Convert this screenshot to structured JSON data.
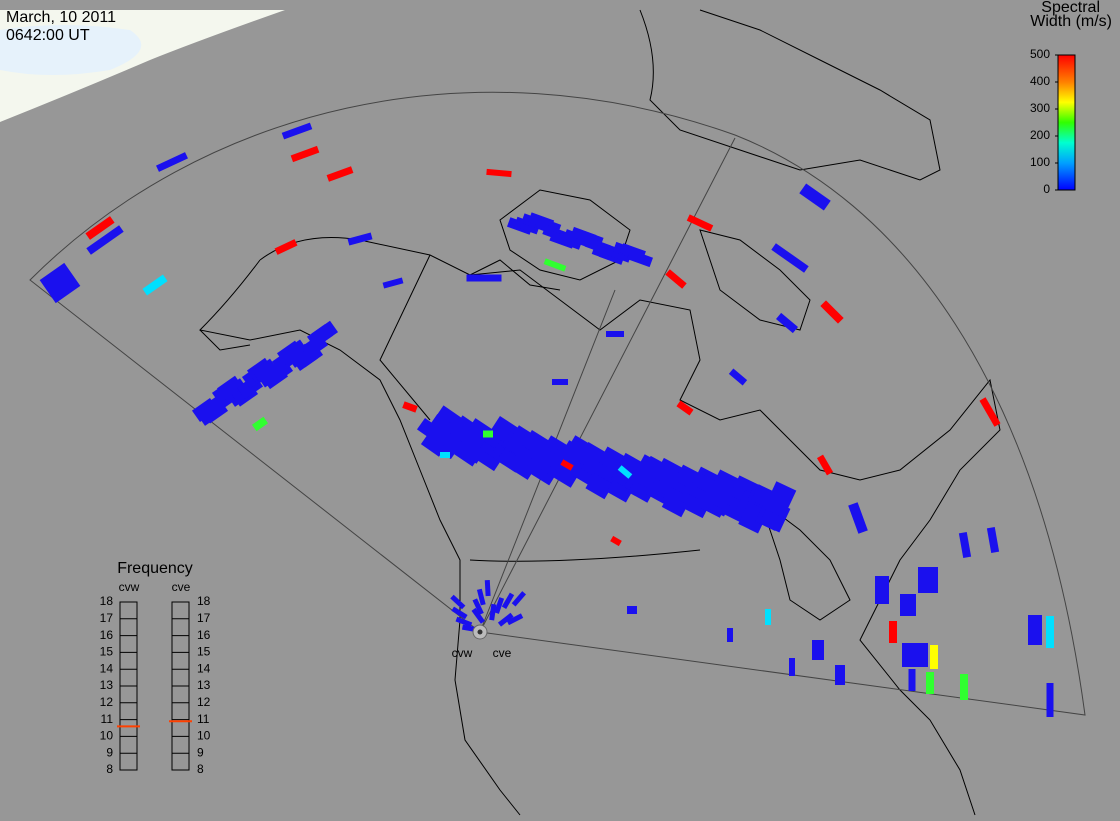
{
  "header": {
    "date": "March, 10 2011",
    "time": "0642:00 UT"
  },
  "colorbar": {
    "title": [
      "Spectral",
      "Width (m/s)"
    ],
    "lim": [
      0,
      500
    ],
    "ticks": [
      0,
      100,
      200,
      300,
      400,
      500
    ]
  },
  "frequency": {
    "title": "Frequency",
    "lim": [
      8,
      18
    ],
    "ticks": [
      8,
      9,
      10,
      11,
      12,
      13,
      14,
      15,
      16,
      17,
      18
    ],
    "radars": [
      {
        "name": "cvw",
        "value": 10.6
      },
      {
        "name": "cve",
        "value": 10.9
      }
    ]
  },
  "stations": [
    "cvw",
    "cve"
  ]
}
